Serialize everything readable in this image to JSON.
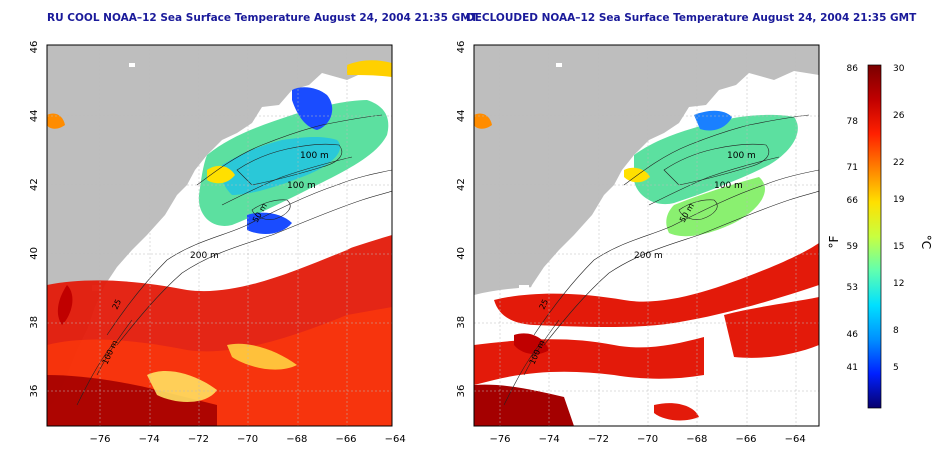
{
  "panels": [
    {
      "title": "RU COOL NOAA–12 Sea Surface Temperature August 24, 2004 21:35 GMT"
    },
    {
      "title": "DECLOUDED NOAA–12 Sea Surface Temperature August 24, 2004 21:35 GMT"
    }
  ],
  "axes": {
    "x_ticks": [
      "−76",
      "−74",
      "−72",
      "−70",
      "−68",
      "−66",
      "−64"
    ],
    "y_ticks": [
      "36",
      "38",
      "40",
      "42",
      "44",
      "46"
    ]
  },
  "contours": {
    "labels": [
      "100 m",
      "100 m",
      "50 m",
      "200 m",
      "25",
      "100 m"
    ]
  },
  "colorbar": {
    "f_unit": "°F",
    "c_unit": "°C",
    "f_ticks": [
      "86",
      "78",
      "71",
      "66",
      "59",
      "53",
      "46",
      "41"
    ],
    "c_ticks": [
      "30",
      "26",
      "22",
      "19",
      "15",
      "12",
      "8",
      "5"
    ],
    "colors": [
      "#08006e",
      "#0020ff",
      "#0090ff",
      "#00e0ff",
      "#60ffb0",
      "#c8ff40",
      "#ffe000",
      "#ff8000",
      "#ff2000",
      "#c00000",
      "#7a0000"
    ]
  },
  "colors": {
    "land": "#bebebe",
    "cloud": "#ffffff",
    "title": "#1a1a9a",
    "warm": "#e31a0a",
    "cool": "#5ce0a0"
  }
}
